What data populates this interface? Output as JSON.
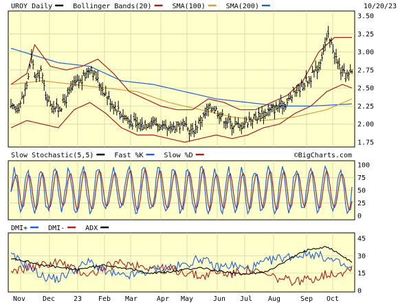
{
  "chart_data": [
    {
      "type": "ohlc",
      "title_items": [
        {
          "label": "UROY Daily",
          "color": "#000000"
        },
        {
          "label": "Bollinger Bands(20)",
          "color": "#a82020"
        },
        {
          "label": "SMA(100)",
          "color": "#d89a40"
        },
        {
          "label": "SMA(200)",
          "color": "#2060d8"
        }
      ],
      "date_label": "10/20/23",
      "ylim": [
        1.75,
        3.5
      ],
      "yticks": [
        "3.50",
        "3.25",
        "3.00",
        "2.75",
        "2.50",
        "2.25",
        "2.00",
        "1.75"
      ],
      "watermark": "©BigCharts.com",
      "colors": {
        "price": "#000000",
        "bollinger": "#a82020",
        "sma100": "#d89a40",
        "sma200": "#2060d8",
        "background": "#ffffcc"
      },
      "close_anchors": [
        [
          0,
          2.2
        ],
        [
          5,
          2.25
        ],
        [
          8,
          2.4
        ],
        [
          10,
          2.55
        ],
        [
          13,
          2.9
        ],
        [
          16,
          2.6
        ],
        [
          19,
          2.75
        ],
        [
          22,
          2.4
        ],
        [
          25,
          2.3
        ],
        [
          30,
          2.2
        ],
        [
          35,
          2.35
        ],
        [
          40,
          2.55
        ],
        [
          45,
          2.6
        ],
        [
          50,
          2.8
        ],
        [
          55,
          2.6
        ],
        [
          58,
          2.5
        ],
        [
          62,
          2.35
        ],
        [
          66,
          2.25
        ],
        [
          70,
          2.15
        ],
        [
          75,
          2.05
        ],
        [
          80,
          2.0
        ],
        [
          85,
          2.0
        ],
        [
          90,
          2.05
        ],
        [
          95,
          1.95
        ],
        [
          100,
          1.9
        ],
        [
          105,
          2.0
        ],
        [
          110,
          1.95
        ],
        [
          115,
          1.9
        ],
        [
          120,
          2.05
        ],
        [
          125,
          2.2
        ],
        [
          128,
          2.25
        ],
        [
          132,
          2.15
        ],
        [
          136,
          2.05
        ],
        [
          140,
          2.0
        ],
        [
          145,
          1.97
        ],
        [
          150,
          2.05
        ],
        [
          155,
          2.1
        ],
        [
          160,
          2.15
        ],
        [
          165,
          2.2
        ],
        [
          170,
          2.25
        ],
        [
          175,
          2.3
        ],
        [
          180,
          2.45
        ],
        [
          185,
          2.55
        ],
        [
          190,
          2.65
        ],
        [
          195,
          2.8
        ],
        [
          198,
          3.05
        ],
        [
          201,
          3.2
        ],
        [
          204,
          3.05
        ],
        [
          207,
          2.85
        ],
        [
          210,
          2.7
        ],
        [
          213,
          2.65
        ],
        [
          216,
          2.7
        ]
      ],
      "bb_upper": [
        [
          0,
          2.55
        ],
        [
          10,
          2.7
        ],
        [
          15,
          3.1
        ],
        [
          25,
          2.8
        ],
        [
          35,
          2.75
        ],
        [
          45,
          2.8
        ],
        [
          55,
          2.9
        ],
        [
          65,
          2.7
        ],
        [
          75,
          2.45
        ],
        [
          85,
          2.35
        ],
        [
          95,
          2.25
        ],
        [
          105,
          2.2
        ],
        [
          115,
          2.2
        ],
        [
          125,
          2.35
        ],
        [
          135,
          2.3
        ],
        [
          145,
          2.2
        ],
        [
          155,
          2.2
        ],
        [
          165,
          2.3
        ],
        [
          175,
          2.4
        ],
        [
          185,
          2.6
        ],
        [
          195,
          3.0
        ],
        [
          205,
          3.2
        ],
        [
          216,
          3.2
        ]
      ],
      "bb_lower": [
        [
          0,
          1.95
        ],
        [
          10,
          2.05
        ],
        [
          20,
          2.0
        ],
        [
          30,
          1.95
        ],
        [
          40,
          2.2
        ],
        [
          50,
          2.3
        ],
        [
          60,
          2.15
        ],
        [
          70,
          1.95
        ],
        [
          80,
          1.85
        ],
        [
          90,
          1.85
        ],
        [
          100,
          1.8
        ],
        [
          110,
          1.75
        ],
        [
          120,
          1.8
        ],
        [
          130,
          1.85
        ],
        [
          140,
          1.8
        ],
        [
          150,
          1.85
        ],
        [
          160,
          1.95
        ],
        [
          170,
          2.0
        ],
        [
          180,
          2.15
        ],
        [
          190,
          2.25
        ],
        [
          200,
          2.45
        ],
        [
          210,
          2.55
        ],
        [
          216,
          2.5
        ]
      ],
      "sma100": [
        [
          0,
          2.55
        ],
        [
          20,
          2.6
        ],
        [
          40,
          2.55
        ],
        [
          60,
          2.5
        ],
        [
          80,
          2.45
        ],
        [
          100,
          2.3
        ],
        [
          120,
          2.2
        ],
        [
          140,
          2.1
        ],
        [
          160,
          2.05
        ],
        [
          180,
          2.1
        ],
        [
          200,
          2.2
        ],
        [
          216,
          2.35
        ]
      ],
      "sma200": [
        [
          0,
          3.05
        ],
        [
          15,
          2.95
        ],
        [
          30,
          2.85
        ],
        [
          50,
          2.8
        ],
        [
          70,
          2.6
        ],
        [
          90,
          2.55
        ],
        [
          110,
          2.45
        ],
        [
          130,
          2.35
        ],
        [
          150,
          2.3
        ],
        [
          170,
          2.25
        ],
        [
          190,
          2.25
        ],
        [
          216,
          2.28
        ]
      ]
    },
    {
      "type": "line",
      "title_items": [
        {
          "label": "Slow Stochastic(5,5)",
          "color": "#000000"
        },
        {
          "label": "Fast %K",
          "color": "#2060d8"
        },
        {
          "label": "Slow %D",
          "color": "#a82020"
        }
      ],
      "watermark": "©BigCharts.com",
      "ylim": [
        0,
        100
      ],
      "yticks": [
        "100",
        "75",
        "50",
        "25",
        "0"
      ],
      "series": [
        {
          "name": "Fast %K",
          "color": "#2060d8"
        },
        {
          "name": "Slow %D",
          "color": "#a82020"
        }
      ],
      "cycle_length": 9
    },
    {
      "type": "line",
      "title_items": [
        {
          "label": "DMI+",
          "color": "#2060d8"
        },
        {
          "label": "DMI-",
          "color": "#a82020"
        },
        {
          "label": "ADX",
          "color": "#000000"
        }
      ],
      "ylim": [
        0,
        45
      ],
      "yticks": [
        "45",
        "30",
        "15",
        "0"
      ],
      "series": [
        {
          "name": "DMI+",
          "color": "#2060d8",
          "anchors": [
            [
              0,
              30
            ],
            [
              10,
              22
            ],
            [
              20,
              12
            ],
            [
              30,
              10
            ],
            [
              40,
              18
            ],
            [
              50,
              25
            ],
            [
              60,
              16
            ],
            [
              70,
              12
            ],
            [
              80,
              14
            ],
            [
              90,
              18
            ],
            [
              100,
              20
            ],
            [
              110,
              22
            ],
            [
              120,
              28
            ],
            [
              130,
              20
            ],
            [
              140,
              22
            ],
            [
              150,
              18
            ],
            [
              160,
              24
            ],
            [
              170,
              28
            ],
            [
              180,
              30
            ],
            [
              190,
              32
            ],
            [
              200,
              28
            ],
            [
              210,
              22
            ],
            [
              216,
              18
            ]
          ]
        },
        {
          "name": "DMI-",
          "color": "#a82020",
          "anchors": [
            [
              0,
              15
            ],
            [
              10,
              20
            ],
            [
              20,
              22
            ],
            [
              30,
              25
            ],
            [
              40,
              18
            ],
            [
              50,
              14
            ],
            [
              60,
              20
            ],
            [
              70,
              24
            ],
            [
              80,
              22
            ],
            [
              90,
              20
            ],
            [
              100,
              18
            ],
            [
              110,
              16
            ],
            [
              120,
              12
            ],
            [
              130,
              16
            ],
            [
              140,
              14
            ],
            [
              150,
              18
            ],
            [
              160,
              14
            ],
            [
              170,
              10
            ],
            [
              180,
              8
            ],
            [
              190,
              10
            ],
            [
              200,
              14
            ],
            [
              210,
              16
            ],
            [
              216,
              20
            ]
          ]
        },
        {
          "name": "ADX",
          "color": "#000000",
          "anchors": [
            [
              0,
              28
            ],
            [
              10,
              25
            ],
            [
              20,
              22
            ],
            [
              30,
              20
            ],
            [
              40,
              18
            ],
            [
              50,
              20
            ],
            [
              60,
              22
            ],
            [
              70,
              20
            ],
            [
              80,
              17
            ],
            [
              90,
              15
            ],
            [
              100,
              16
            ],
            [
              110,
              18
            ],
            [
              120,
              20
            ],
            [
              130,
              17
            ],
            [
              140,
              15
            ],
            [
              150,
              14
            ],
            [
              160,
              16
            ],
            [
              170,
              22
            ],
            [
              180,
              30
            ],
            [
              190,
              36
            ],
            [
              200,
              38
            ],
            [
              210,
              30
            ],
            [
              216,
              24
            ]
          ]
        }
      ]
    }
  ],
  "x_axis_labels": [
    "Nov",
    "Dec",
    "23",
    "Feb",
    "Mar",
    "Apr",
    "May",
    "Jun",
    "Jul",
    "Aug",
    "Sep",
    "Oct"
  ]
}
